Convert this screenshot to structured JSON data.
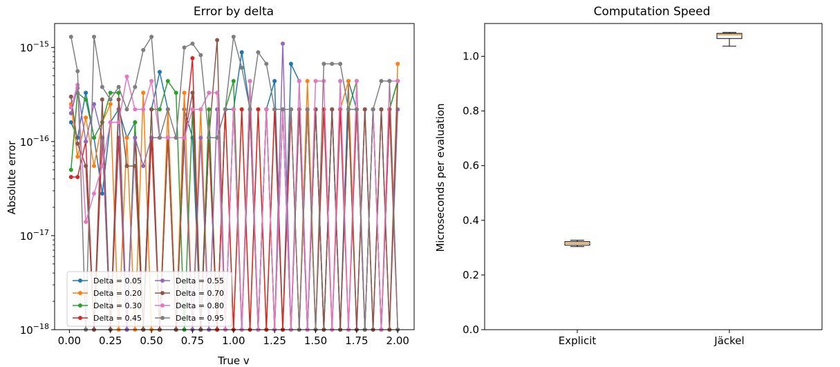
{
  "chart_data": [
    {
      "type": "line",
      "title": "Error by delta",
      "xlabel": "True v",
      "ylabel": "Absolute error",
      "yscale": "log",
      "xlim": [
        -0.09,
        2.1
      ],
      "ylim": [
        1e-18,
        1.8e-15
      ],
      "x_ticks": [
        "0.00",
        "0.25",
        "0.50",
        "0.75",
        "1.00",
        "1.25",
        "1.50",
        "1.75",
        "2.00"
      ],
      "y_ticks": [
        "10−15",
        "10−16",
        "10−17",
        "10−18"
      ],
      "legend_position": "lower left",
      "grid": false,
      "x": [
        0.01,
        0.05,
        0.1,
        0.15,
        0.2,
        0.25,
        0.3,
        0.35,
        0.4,
        0.45,
        0.5,
        0.55,
        0.6,
        0.65,
        0.7,
        0.75,
        0.8,
        0.85,
        0.9,
        0.95,
        1.0,
        1.05,
        1.1,
        1.15,
        1.2,
        1.25,
        1.3,
        1.35,
        1.4,
        1.45,
        1.5,
        1.55,
        1.6,
        1.65,
        1.7,
        1.75,
        1.8,
        1.85,
        1.9,
        1.95,
        2.0
      ],
      "series": [
        {
          "name": "Delta = 0.05",
          "color": "#1f77b4",
          "values": [
            1.6e-16,
            1.1e-16,
            3.3e-16,
            1.1e-16,
            2.8e-17,
            1.6e-16,
            2.2e-16,
            1.1e-16,
            1.6e-16,
            1e-18,
            2.2e-16,
            5.5e-16,
            2.2e-16,
            1e-18,
            2.2e-16,
            1.1e-16,
            1e-18,
            1.1e-16,
            1e-18,
            2.2e-16,
            2.2e-16,
            8.9e-16,
            2.2e-16,
            1e-18,
            2.2e-16,
            4.4e-16,
            1e-18,
            6.7e-16,
            4.4e-16,
            1e-18,
            2.2e-16,
            1e-18,
            2.2e-16,
            1e-18,
            4.4e-16,
            2.2e-16,
            1e-18,
            2.2e-16,
            1e-18,
            2.2e-16,
            4.4e-16
          ]
        },
        {
          "name": "Delta = 0.20",
          "color": "#ff7f0e",
          "values": [
            2.5e-16,
            6.9e-17,
            1.8e-16,
            5.5e-17,
            1.6e-16,
            2.5e-16,
            1e-18,
            1.1e-16,
            1e-18,
            3.3e-16,
            1e-18,
            1e-18,
            2.2e-16,
            1e-18,
            3.3e-16,
            1e-18,
            2.2e-16,
            1e-18,
            1e-18,
            2.2e-16,
            1e-18,
            2.2e-16,
            1e-18,
            2.2e-16,
            1e-18,
            2.2e-16,
            1e-18,
            2.2e-16,
            1e-18,
            4.4e-16,
            1e-18,
            2.2e-16,
            1e-18,
            2.2e-16,
            4.4e-16,
            1e-18,
            2.2e-16,
            1e-18,
            2.2e-16,
            1e-18,
            6.7e-16
          ]
        },
        {
          "name": "Delta = 0.30",
          "color": "#2ca02c",
          "values": [
            5e-17,
            3.3e-16,
            2.8e-16,
            1.1e-16,
            1.6e-16,
            3.3e-16,
            3.3e-16,
            1e-18,
            1.6e-16,
            1e-18,
            2.2e-16,
            2.2e-16,
            4.4e-16,
            3.3e-16,
            1e-18,
            2.2e-16,
            1e-18,
            2.2e-16,
            1e-18,
            2.2e-16,
            4.4e-16,
            1e-18,
            4.4e-16,
            1e-18,
            2.2e-16,
            1e-18,
            2.2e-16,
            1e-18,
            2.2e-16,
            1e-18,
            2.2e-16,
            1e-18,
            2.2e-16,
            1e-18,
            2.2e-16,
            4.4e-16,
            1e-18,
            2.2e-16,
            1e-18,
            2.2e-16,
            4.4e-16
          ]
        },
        {
          "name": "Delta = 0.45",
          "color": "#d62728",
          "values": [
            4.2e-17,
            4.2e-17,
            1e-16,
            1e-18,
            1.1e-16,
            1e-18,
            1.1e-16,
            1e-18,
            1.1e-16,
            1e-18,
            1.1e-16,
            1e-18,
            1.1e-16,
            1e-18,
            1.1e-16,
            7.7e-16,
            1e-18,
            1.1e-16,
            1e-18,
            2.2e-16,
            1e-18,
            2.2e-16,
            1e-18,
            2.2e-16,
            1e-18,
            2.2e-16,
            1e-18,
            2.2e-16,
            1e-18,
            2.2e-16,
            1e-18,
            2.2e-16,
            1e-18,
            2.2e-16,
            1e-18,
            2.2e-16,
            1e-18,
            2.2e-16,
            1e-18,
            2.2e-16,
            1e-18
          ]
        },
        {
          "name": "Delta = 0.55",
          "color": "#9467bd",
          "values": [
            2e-16,
            3.7e-16,
            1e-16,
            2.5e-16,
            1.1e-16,
            1e-18,
            2.2e-16,
            1e-18,
            1.1e-16,
            5.5e-17,
            1.1e-16,
            1.1e-16,
            1.1e-16,
            1.1e-16,
            1.1e-16,
            1e-18,
            1.1e-16,
            1e-18,
            2.2e-16,
            1e-18,
            2.2e-16,
            1e-18,
            2.2e-16,
            1e-18,
            2.2e-16,
            1e-18,
            1.1e-15,
            1e-18,
            2.2e-16,
            1e-18,
            2.2e-16,
            1e-18,
            2.2e-16,
            1e-18,
            2.2e-16,
            1e-18,
            2.2e-16,
            1e-18,
            2.2e-16,
            1e-18,
            2.2e-16
          ]
        },
        {
          "name": "Delta = 0.70",
          "color": "#8c564b",
          "values": [
            3e-16,
            9.5e-17,
            5.5e-17,
            1e-18,
            2.8e-16,
            1e-18,
            2.8e-16,
            5.5e-17,
            5.5e-17,
            1e-18,
            2.2e-16,
            1e-18,
            1.1e-16,
            1e-18,
            1.1e-16,
            3.3e-16,
            1e-18,
            1.1e-16,
            1.2e-15,
            1e-18,
            2.2e-16,
            1e-18,
            2.2e-16,
            1e-18,
            2.2e-16,
            1e-18,
            2.2e-16,
            1e-18,
            2.2e-16,
            1e-18,
            2.2e-16,
            1e-18,
            2.2e-16,
            1e-18,
            2.2e-16,
            1e-18,
            2.2e-16,
            1e-18,
            2.2e-16,
            1e-18,
            4.4e-16
          ]
        },
        {
          "name": "Delta = 0.80",
          "color": "#e377c2",
          "values": [
            2.3e-16,
            4e-16,
            1.4e-17,
            2.8e-17,
            5.5e-17,
            1.6e-16,
            1.6e-16,
            4.9e-16,
            2.2e-16,
            2.2e-16,
            4.4e-16,
            1.1e-16,
            1.1e-16,
            1.1e-16,
            1.1e-16,
            2.2e-16,
            2.2e-16,
            3.3e-16,
            3.3e-16,
            1e-18,
            2.2e-16,
            1e-18,
            4.4e-16,
            1e-18,
            2.2e-16,
            1e-18,
            2.2e-16,
            1e-18,
            4.4e-16,
            1e-18,
            4.4e-16,
            4.4e-16,
            1e-18,
            4.4e-16,
            1e-18,
            4.4e-16,
            1e-18,
            2.2e-16,
            1e-18,
            4.4e-16,
            4.4e-16
          ]
        },
        {
          "name": "Delta = 0.95",
          "color": "#7f7f7f",
          "values": [
            1.3e-15,
            5.6e-16,
            1e-18,
            1.3e-15,
            3.8e-16,
            2.8e-16,
            3.8e-16,
            2.2e-16,
            3.8e-16,
            9.4e-16,
            1.3e-15,
            1.1e-16,
            2.2e-16,
            1.1e-16,
            1e-15,
            1.1e-15,
            8.3e-16,
            1.1e-16,
            1.1e-16,
            2.2e-16,
            1.3e-15,
            6.1e-16,
            2.2e-16,
            8.9e-16,
            6.7e-16,
            2.2e-16,
            2.2e-16,
            2.2e-16,
            1e-18,
            2.2e-16,
            1e-18,
            6.7e-16,
            6.7e-16,
            6.7e-16,
            2.2e-16,
            2.2e-16,
            1e-18,
            2.2e-16,
            4.4e-16,
            4.4e-16,
            1e-18
          ]
        }
      ]
    },
    {
      "type": "box",
      "title": "Computation Speed",
      "xlabel": "",
      "ylabel": "Microseconds per evaluation",
      "ylim": [
        0,
        1.12
      ],
      "y_ticks": [
        "0.0",
        "0.2",
        "0.4",
        "0.6",
        "0.8",
        "1.0"
      ],
      "categories": [
        "Explicit",
        "Jäckel"
      ],
      "boxes": [
        {
          "whisker_low": 0.304,
          "q1": 0.309,
          "median": 0.316,
          "q3": 0.322,
          "whisker_high": 0.327
        },
        {
          "whisker_low": 1.037,
          "q1": 1.065,
          "median": 1.079,
          "q3": 1.084,
          "whisker_high": 1.087
        }
      ],
      "box_color": "#000000",
      "median_color": "#ff7f0e"
    }
  ]
}
